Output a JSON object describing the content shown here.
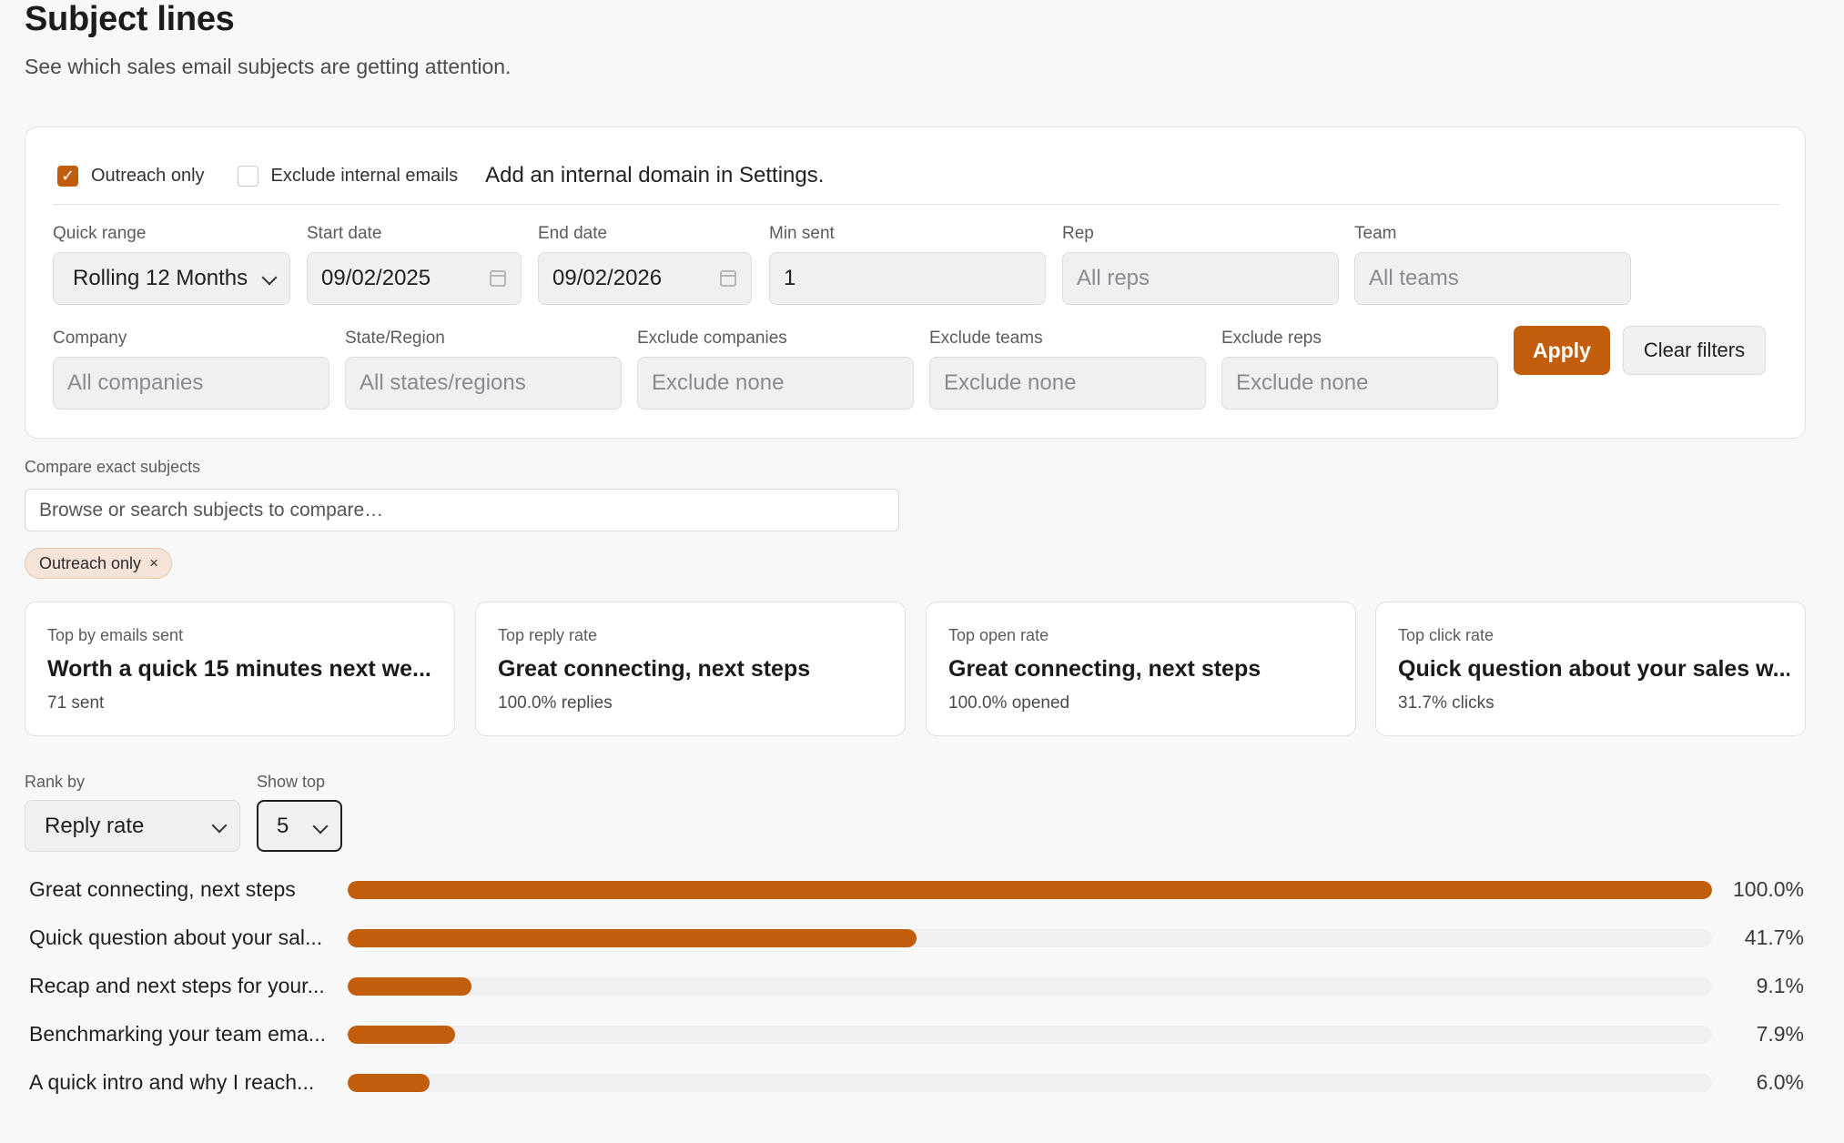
{
  "header": {
    "title": "Subject lines",
    "subtitle": "See which sales email subjects are getting attention."
  },
  "filters": {
    "outreach_only": {
      "label": "Outreach only",
      "checked": true
    },
    "exclude_internal": {
      "label": "Exclude internal emails",
      "checked": false
    },
    "internal_note": "Add an internal domain in Settings.",
    "quick_range": {
      "label": "Quick range",
      "value": "Rolling 12 Months"
    },
    "start_date": {
      "label": "Start date",
      "value": "09/02/2025"
    },
    "end_date": {
      "label": "End date",
      "value": "09/02/2026"
    },
    "min_sent": {
      "label": "Min sent",
      "value": "1"
    },
    "rep": {
      "label": "Rep",
      "placeholder": "All reps"
    },
    "team": {
      "label": "Team",
      "placeholder": "All teams"
    },
    "company": {
      "label": "Company",
      "placeholder": "All companies"
    },
    "state_region": {
      "label": "State/Region",
      "placeholder": "All states/regions"
    },
    "exclude_companies": {
      "label": "Exclude companies",
      "placeholder": "Exclude none"
    },
    "exclude_teams": {
      "label": "Exclude teams",
      "placeholder": "Exclude none"
    },
    "exclude_reps": {
      "label": "Exclude reps",
      "placeholder": "Exclude none"
    },
    "apply_label": "Apply",
    "clear_label": "Clear filters"
  },
  "compare": {
    "label": "Compare exact subjects",
    "placeholder": "Browse or search subjects to compare…"
  },
  "active_chip": {
    "label": "Outreach only",
    "remove": "×"
  },
  "stats": [
    {
      "label": "Top by emails sent",
      "value": "Worth a quick 15 minutes next we...",
      "sub": "71 sent"
    },
    {
      "label": "Top reply rate",
      "value": "Great connecting, next steps",
      "sub": "100.0% replies"
    },
    {
      "label": "Top open rate",
      "value": "Great connecting, next steps",
      "sub": "100.0% opened"
    },
    {
      "label": "Top click rate",
      "value": "Quick question about your sales w...",
      "sub": "31.7% clicks"
    }
  ],
  "ranking": {
    "rank_by_label": "Rank by",
    "rank_by_value": "Reply rate",
    "show_top_label": "Show top",
    "show_top_value": "5"
  },
  "colors": {
    "accent": "#c15d0b",
    "track": "#f0f0f3"
  },
  "chart_data": {
    "type": "bar",
    "orientation": "horizontal",
    "categories": [
      "Great connecting, next steps",
      "Quick question about your sal...",
      "Recap and next steps for your...",
      "Benchmarking your team ema...",
      "A quick intro and why I reach..."
    ],
    "values": [
      100.0,
      41.7,
      9.1,
      7.9,
      6.0
    ],
    "value_labels": [
      "100.0%",
      "41.7%",
      "9.1%",
      "7.9%",
      "6.0%"
    ],
    "xlim": [
      0,
      100
    ]
  }
}
